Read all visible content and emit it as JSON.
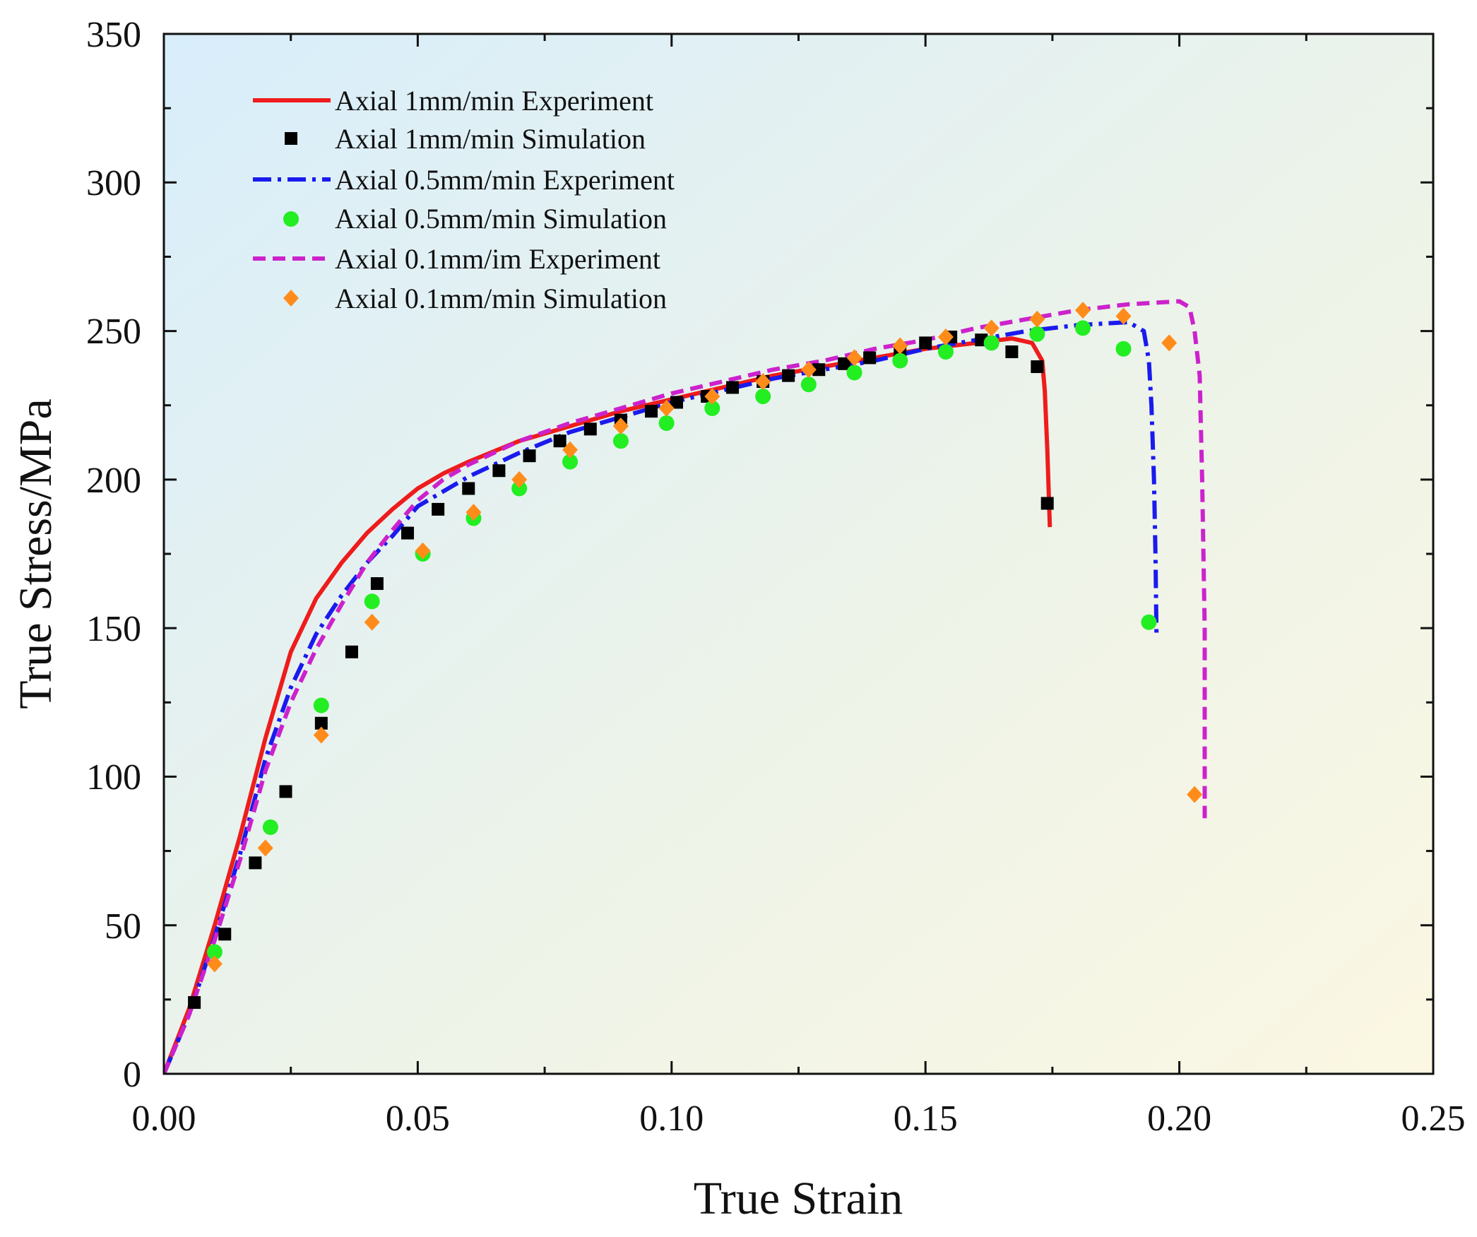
{
  "chart_data": {
    "type": "line",
    "title": "",
    "xlabel": "True Strain",
    "ylabel": "True Stress/MPa",
    "xlim": [
      0,
      0.25
    ],
    "ylim": [
      0,
      350
    ],
    "xticks": [
      "0.00",
      "0.05",
      "0.10",
      "0.15",
      "0.20",
      "0.25"
    ],
    "yticks": [
      "0",
      "50",
      "100",
      "150",
      "200",
      "250",
      "300",
      "350"
    ],
    "grid": false,
    "legend_position": "top-left",
    "series": [
      {
        "name": "Axial 1mm/min Experiment",
        "kind": "line",
        "style": "solid",
        "color": "#ee1c1c",
        "points": [
          [
            0,
            0
          ],
          [
            0.005,
            22
          ],
          [
            0.01,
            50
          ],
          [
            0.015,
            80
          ],
          [
            0.02,
            113
          ],
          [
            0.025,
            142
          ],
          [
            0.03,
            160
          ],
          [
            0.035,
            172
          ],
          [
            0.04,
            182
          ],
          [
            0.045,
            190
          ],
          [
            0.05,
            197
          ],
          [
            0.055,
            202
          ],
          [
            0.06,
            206
          ],
          [
            0.07,
            213
          ],
          [
            0.08,
            218
          ],
          [
            0.09,
            223
          ],
          [
            0.1,
            227
          ],
          [
            0.11,
            231
          ],
          [
            0.12,
            235
          ],
          [
            0.13,
            238
          ],
          [
            0.14,
            241
          ],
          [
            0.15,
            244
          ],
          [
            0.16,
            246
          ],
          [
            0.167,
            247.5
          ],
          [
            0.171,
            246
          ],
          [
            0.173,
            240
          ],
          [
            0.1735,
            230
          ],
          [
            0.174,
            210
          ],
          [
            0.1745,
            184
          ]
        ]
      },
      {
        "name": "Axial 1mm/min Simulation",
        "kind": "scatter",
        "marker": "square",
        "color": "#000000",
        "points": [
          [
            0.006,
            24
          ],
          [
            0.012,
            47
          ],
          [
            0.018,
            71
          ],
          [
            0.024,
            95
          ],
          [
            0.031,
            118
          ],
          [
            0.037,
            142
          ],
          [
            0.042,
            165
          ],
          [
            0.048,
            182
          ],
          [
            0.054,
            190
          ],
          [
            0.06,
            197
          ],
          [
            0.066,
            203
          ],
          [
            0.072,
            208
          ],
          [
            0.078,
            213
          ],
          [
            0.084,
            217
          ],
          [
            0.09,
            220
          ],
          [
            0.096,
            223
          ],
          [
            0.101,
            226
          ],
          [
            0.107,
            228
          ],
          [
            0.112,
            231
          ],
          [
            0.118,
            233
          ],
          [
            0.123,
            235
          ],
          [
            0.129,
            237
          ],
          [
            0.134,
            239
          ],
          [
            0.139,
            241
          ],
          [
            0.145,
            243
          ],
          [
            0.15,
            246
          ],
          [
            0.155,
            248
          ],
          [
            0.161,
            247
          ],
          [
            0.167,
            243
          ],
          [
            0.172,
            238
          ],
          [
            0.174,
            192
          ]
        ]
      },
      {
        "name": "Axial 0.5mm/min Experiment",
        "kind": "line",
        "style": "dashdot",
        "color": "#1a1aee",
        "points": [
          [
            0,
            0
          ],
          [
            0.005,
            20
          ],
          [
            0.01,
            46
          ],
          [
            0.015,
            74
          ],
          [
            0.02,
            106
          ],
          [
            0.025,
            130
          ],
          [
            0.03,
            148
          ],
          [
            0.035,
            161
          ],
          [
            0.04,
            172
          ],
          [
            0.045,
            181
          ],
          [
            0.05,
            191
          ],
          [
            0.055,
            196
          ],
          [
            0.06,
            201
          ],
          [
            0.07,
            209
          ],
          [
            0.08,
            216
          ],
          [
            0.09,
            221
          ],
          [
            0.1,
            226
          ],
          [
            0.11,
            230
          ],
          [
            0.12,
            234
          ],
          [
            0.13,
            237
          ],
          [
            0.14,
            240
          ],
          [
            0.15,
            244
          ],
          [
            0.16,
            247
          ],
          [
            0.17,
            250
          ],
          [
            0.18,
            252
          ],
          [
            0.19,
            253
          ],
          [
            0.193,
            250
          ],
          [
            0.194,
            240
          ],
          [
            0.1945,
            225
          ],
          [
            0.195,
            200
          ],
          [
            0.1953,
            175
          ],
          [
            0.1955,
            147
          ]
        ]
      },
      {
        "name": "Axial 0.5mm/min Simulation",
        "kind": "scatter",
        "marker": "circle",
        "color": "#22ee22",
        "points": [
          [
            0.01,
            41
          ],
          [
            0.021,
            83
          ],
          [
            0.031,
            124
          ],
          [
            0.041,
            159
          ],
          [
            0.051,
            175
          ],
          [
            0.061,
            187
          ],
          [
            0.07,
            197
          ],
          [
            0.08,
            206
          ],
          [
            0.09,
            213
          ],
          [
            0.099,
            219
          ],
          [
            0.108,
            224
          ],
          [
            0.118,
            228
          ],
          [
            0.127,
            232
          ],
          [
            0.136,
            236
          ],
          [
            0.145,
            240
          ],
          [
            0.154,
            243
          ],
          [
            0.163,
            246
          ],
          [
            0.172,
            249
          ],
          [
            0.181,
            251
          ],
          [
            0.189,
            244
          ],
          [
            0.194,
            152
          ]
        ]
      },
      {
        "name": "Axial 0.1mm/im Experiment",
        "kind": "line",
        "style": "dashed",
        "color": "#cc22cc",
        "points": [
          [
            0,
            0
          ],
          [
            0.005,
            20
          ],
          [
            0.01,
            45
          ],
          [
            0.015,
            72
          ],
          [
            0.02,
            102
          ],
          [
            0.025,
            125
          ],
          [
            0.03,
            143
          ],
          [
            0.035,
            158
          ],
          [
            0.04,
            172
          ],
          [
            0.045,
            183
          ],
          [
            0.05,
            193
          ],
          [
            0.055,
            200
          ],
          [
            0.06,
            205
          ],
          [
            0.07,
            213
          ],
          [
            0.08,
            219
          ],
          [
            0.09,
            224
          ],
          [
            0.1,
            229
          ],
          [
            0.11,
            233
          ],
          [
            0.12,
            237
          ],
          [
            0.13,
            240
          ],
          [
            0.14,
            244
          ],
          [
            0.15,
            247
          ],
          [
            0.16,
            251
          ],
          [
            0.17,
            254
          ],
          [
            0.18,
            257
          ],
          [
            0.19,
            259
          ],
          [
            0.2,
            260
          ],
          [
            0.202,
            258
          ],
          [
            0.203,
            250
          ],
          [
            0.204,
            235
          ],
          [
            0.2045,
            200
          ],
          [
            0.205,
            150
          ],
          [
            0.205,
            86
          ]
        ]
      },
      {
        "name": "Axial 0.1mm/min Simulation",
        "kind": "scatter",
        "marker": "diamond",
        "color": "#ff8c1a",
        "points": [
          [
            0.01,
            37
          ],
          [
            0.02,
            76
          ],
          [
            0.031,
            114
          ],
          [
            0.041,
            152
          ],
          [
            0.051,
            176
          ],
          [
            0.061,
            189
          ],
          [
            0.07,
            200
          ],
          [
            0.08,
            210
          ],
          [
            0.09,
            218
          ],
          [
            0.099,
            224
          ],
          [
            0.108,
            228
          ],
          [
            0.118,
            233
          ],
          [
            0.127,
            237
          ],
          [
            0.136,
            241
          ],
          [
            0.145,
            245
          ],
          [
            0.154,
            248
          ],
          [
            0.163,
            251
          ],
          [
            0.172,
            254
          ],
          [
            0.181,
            257
          ],
          [
            0.189,
            255
          ],
          [
            0.198,
            246
          ],
          [
            0.203,
            94
          ]
        ]
      }
    ]
  }
}
